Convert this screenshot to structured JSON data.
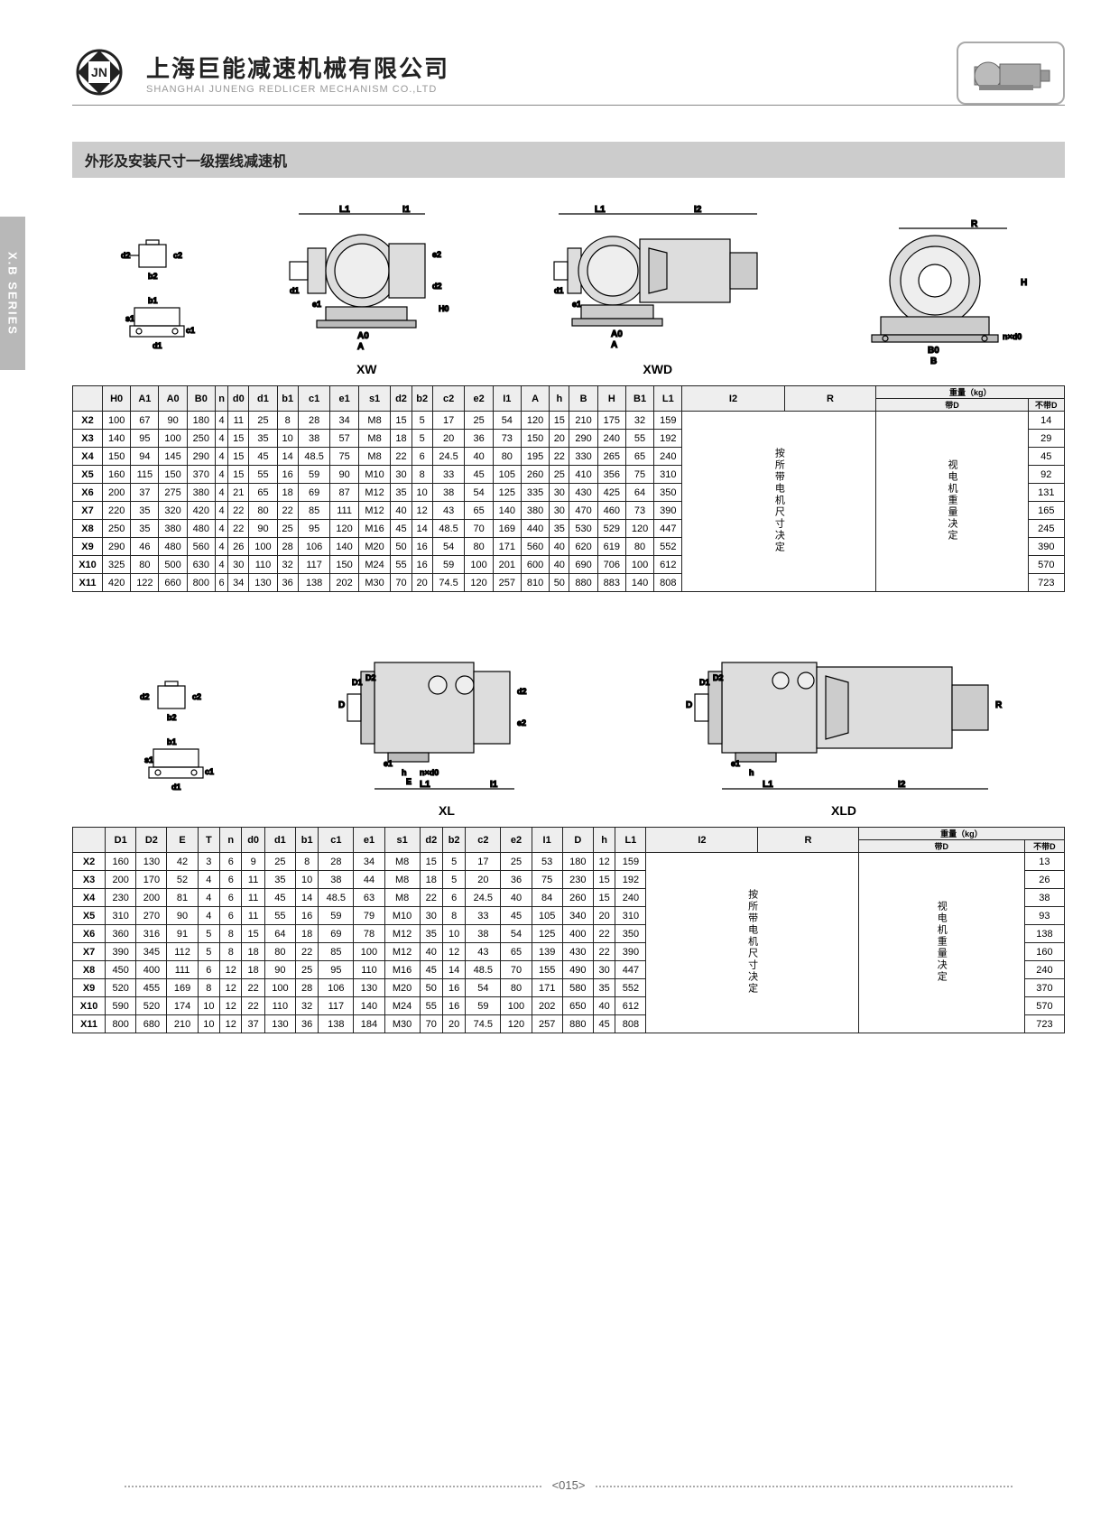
{
  "sideTab": "X.B SERIES",
  "company": {
    "cn": "上海巨能减速机械有限公司",
    "en": "SHANGHAI JUNENG REDLICER MECHANISM CO.,LTD",
    "logoText": "巨能 JN"
  },
  "sectionTitle": "外形及安装尺寸一级摆线减速机",
  "diagramLabels": {
    "xw": "XW",
    "xwd": "XWD",
    "side": "",
    "xl": "XL",
    "xld": "XLD"
  },
  "colNotes": {
    "l2r": "按所带电机尺寸决定",
    "weightD": "视电机重量决定"
  },
  "weightHeader": {
    "main": "重量（kg）",
    "sub1": "带D",
    "sub2": "不带D"
  },
  "table1": {
    "headers": [
      "",
      "H0",
      "A1",
      "A0",
      "B0",
      "n",
      "d0",
      "d1",
      "b1",
      "c1",
      "e1",
      "s1",
      "d2",
      "b2",
      "c2",
      "e2",
      "I1",
      "A",
      "h",
      "B",
      "H",
      "B1",
      "L1",
      "I2",
      "R"
    ],
    "rows": [
      [
        "X2",
        "100",
        "67",
        "90",
        "180",
        "4",
        "11",
        "25",
        "8",
        "28",
        "34",
        "M8",
        "15",
        "5",
        "17",
        "25",
        "54",
        "120",
        "15",
        "210",
        "175",
        "32",
        "159",
        "",
        "14"
      ],
      [
        "X3",
        "140",
        "95",
        "100",
        "250",
        "4",
        "15",
        "35",
        "10",
        "38",
        "57",
        "M8",
        "18",
        "5",
        "20",
        "36",
        "73",
        "150",
        "20",
        "290",
        "240",
        "55",
        "192",
        "",
        "29"
      ],
      [
        "X4",
        "150",
        "94",
        "145",
        "290",
        "4",
        "15",
        "45",
        "14",
        "48.5",
        "75",
        "M8",
        "22",
        "6",
        "24.5",
        "40",
        "80",
        "195",
        "22",
        "330",
        "265",
        "65",
        "240",
        "",
        "45"
      ],
      [
        "X5",
        "160",
        "115",
        "150",
        "370",
        "4",
        "15",
        "55",
        "16",
        "59",
        "90",
        "M10",
        "30",
        "8",
        "33",
        "45",
        "105",
        "260",
        "25",
        "410",
        "356",
        "75",
        "310",
        "",
        "92"
      ],
      [
        "X6",
        "200",
        "37",
        "275",
        "380",
        "4",
        "21",
        "65",
        "18",
        "69",
        "87",
        "M12",
        "35",
        "10",
        "38",
        "54",
        "125",
        "335",
        "30",
        "430",
        "425",
        "64",
        "350",
        "",
        "131"
      ],
      [
        "X7",
        "220",
        "35",
        "320",
        "420",
        "4",
        "22",
        "80",
        "22",
        "85",
        "111",
        "M12",
        "40",
        "12",
        "43",
        "65",
        "140",
        "380",
        "30",
        "470",
        "460",
        "73",
        "390",
        "",
        "165"
      ],
      [
        "X8",
        "250",
        "35",
        "380",
        "480",
        "4",
        "22",
        "90",
        "25",
        "95",
        "120",
        "M16",
        "45",
        "14",
        "48.5",
        "70",
        "169",
        "440",
        "35",
        "530",
        "529",
        "120",
        "447",
        "",
        "245"
      ],
      [
        "X9",
        "290",
        "46",
        "480",
        "560",
        "4",
        "26",
        "100",
        "28",
        "106",
        "140",
        "M20",
        "50",
        "16",
        "54",
        "80",
        "171",
        "560",
        "40",
        "620",
        "619",
        "80",
        "552",
        "",
        "390"
      ],
      [
        "X10",
        "325",
        "80",
        "500",
        "630",
        "4",
        "30",
        "110",
        "32",
        "117",
        "150",
        "M24",
        "55",
        "16",
        "59",
        "100",
        "201",
        "600",
        "40",
        "690",
        "706",
        "100",
        "612",
        "",
        "570"
      ],
      [
        "X11",
        "420",
        "122",
        "660",
        "800",
        "6",
        "34",
        "130",
        "36",
        "138",
        "202",
        "M30",
        "70",
        "20",
        "74.5",
        "120",
        "257",
        "810",
        "50",
        "880",
        "883",
        "140",
        "808",
        "",
        "723"
      ]
    ]
  },
  "table2": {
    "headers": [
      "",
      "D1",
      "D2",
      "E",
      "T",
      "n",
      "d0",
      "d1",
      "b1",
      "c1",
      "e1",
      "s1",
      "d2",
      "b2",
      "c2",
      "e2",
      "I1",
      "D",
      "h",
      "L1",
      "I2",
      "R"
    ],
    "rows": [
      [
        "X2",
        "160",
        "130",
        "42",
        "3",
        "6",
        "9",
        "25",
        "8",
        "28",
        "34",
        "M8",
        "15",
        "5",
        "17",
        "25",
        "53",
        "180",
        "12",
        "159",
        "",
        "13"
      ],
      [
        "X3",
        "200",
        "170",
        "52",
        "4",
        "6",
        "11",
        "35",
        "10",
        "38",
        "44",
        "M8",
        "18",
        "5",
        "20",
        "36",
        "75",
        "230",
        "15",
        "192",
        "",
        "26"
      ],
      [
        "X4",
        "230",
        "200",
        "81",
        "4",
        "6",
        "11",
        "45",
        "14",
        "48.5",
        "63",
        "M8",
        "22",
        "6",
        "24.5",
        "40",
        "84",
        "260",
        "15",
        "240",
        "",
        "38"
      ],
      [
        "X5",
        "310",
        "270",
        "90",
        "4",
        "6",
        "11",
        "55",
        "16",
        "59",
        "79",
        "M10",
        "30",
        "8",
        "33",
        "45",
        "105",
        "340",
        "20",
        "310",
        "",
        "93"
      ],
      [
        "X6",
        "360",
        "316",
        "91",
        "5",
        "8",
        "15",
        "64",
        "18",
        "69",
        "78",
        "M12",
        "35",
        "10",
        "38",
        "54",
        "125",
        "400",
        "22",
        "350",
        "",
        "138"
      ],
      [
        "X7",
        "390",
        "345",
        "112",
        "5",
        "8",
        "18",
        "80",
        "22",
        "85",
        "100",
        "M12",
        "40",
        "12",
        "43",
        "65",
        "139",
        "430",
        "22",
        "390",
        "",
        "160"
      ],
      [
        "X8",
        "450",
        "400",
        "111",
        "6",
        "12",
        "18",
        "90",
        "25",
        "95",
        "110",
        "M16",
        "45",
        "14",
        "48.5",
        "70",
        "155",
        "490",
        "30",
        "447",
        "",
        "240"
      ],
      [
        "X9",
        "520",
        "455",
        "169",
        "8",
        "12",
        "22",
        "100",
        "28",
        "106",
        "130",
        "M20",
        "50",
        "16",
        "54",
        "80",
        "171",
        "580",
        "35",
        "552",
        "",
        "370"
      ],
      [
        "X10",
        "590",
        "520",
        "174",
        "10",
        "12",
        "22",
        "110",
        "32",
        "117",
        "140",
        "M24",
        "55",
        "16",
        "59",
        "100",
        "202",
        "650",
        "40",
        "612",
        "",
        "570"
      ],
      [
        "X11",
        "800",
        "680",
        "210",
        "10",
        "12",
        "37",
        "130",
        "36",
        "138",
        "184",
        "M30",
        "70",
        "20",
        "74.5",
        "120",
        "257",
        "880",
        "45",
        "808",
        "",
        "723"
      ]
    ]
  },
  "pageNum": "<015>",
  "colors": {
    "sideTab": "#b8b8b8",
    "sectionBar": "#cccccc",
    "border": "#222222",
    "text": "#222222"
  }
}
